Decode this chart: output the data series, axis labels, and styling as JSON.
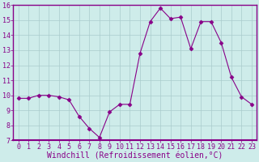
{
  "x": [
    0,
    1,
    2,
    3,
    4,
    5,
    6,
    7,
    8,
    9,
    10,
    11,
    12,
    13,
    14,
    15,
    16,
    17,
    18,
    19,
    20,
    21,
    22,
    23
  ],
  "y": [
    9.8,
    9.8,
    10.0,
    10.0,
    9.9,
    9.7,
    8.6,
    7.8,
    7.2,
    8.9,
    9.4,
    9.4,
    12.8,
    14.9,
    15.8,
    15.1,
    15.2,
    13.1,
    14.9,
    14.9,
    13.5,
    11.2,
    9.9,
    9.4
  ],
  "line_color": "#880088",
  "marker": "D",
  "marker_size": 2.5,
  "xlabel": "Windchill (Refroidissement éolien,°C)",
  "ylim": [
    7,
    16
  ],
  "xlim": [
    -0.5,
    23.5
  ],
  "yticks": [
    7,
    8,
    9,
    10,
    11,
    12,
    13,
    14,
    15,
    16
  ],
  "xticks": [
    0,
    1,
    2,
    3,
    4,
    5,
    6,
    7,
    8,
    9,
    10,
    11,
    12,
    13,
    14,
    15,
    16,
    17,
    18,
    19,
    20,
    21,
    22,
    23
  ],
  "background_color": "#ceecea",
  "grid_color": "#aacccc",
  "border_color": "#880088",
  "axis_fontsize": 7,
  "tick_fontsize": 6
}
